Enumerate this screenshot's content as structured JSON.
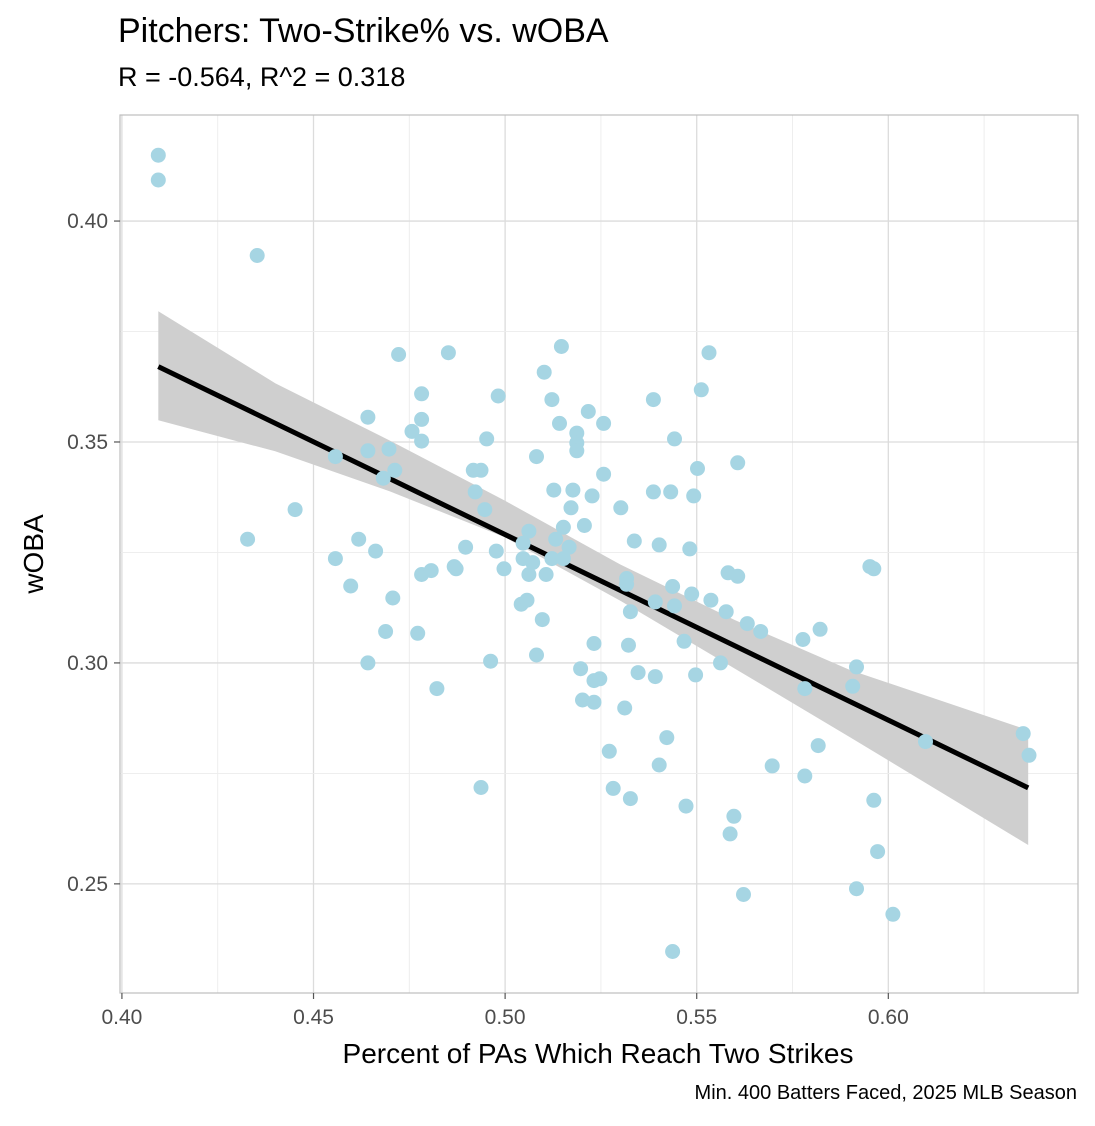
{
  "chart_data": {
    "type": "scatter",
    "title": "Pitchers: Two-Strike% vs. wOBA",
    "subtitle": "R = -0.564, R^2 = 0.318",
    "caption": "Min. 400 Batters Faced, 2025 MLB Season",
    "xlabel": "Percent of PAs Which Reach Two Strikes",
    "ylabel": "wOBA",
    "xlim": [
      0.3995,
      0.6495
    ],
    "ylim": [
      0.2253,
      0.424
    ],
    "xticks": [
      "0.40",
      "0.45",
      "0.50",
      "0.55",
      "0.60"
    ],
    "yticks": [
      "0.25",
      "0.30",
      "0.35",
      "0.40"
    ],
    "grid": true,
    "point_color": "#a6d5e3",
    "line_color": "#000000",
    "band_color": "#cfcfcf",
    "fit": {
      "intercept": 0.539,
      "slope": -0.4199,
      "x_range": [
        0.4095,
        0.6365
      ]
    },
    "confidence_band": [
      {
        "x": 0.4095,
        "lower": 0.3549,
        "upper": 0.3796
      },
      {
        "x": 0.44,
        "lower": 0.3479,
        "upper": 0.3633
      },
      {
        "x": 0.47,
        "lower": 0.3388,
        "upper": 0.3503
      },
      {
        "x": 0.5,
        "lower": 0.3284,
        "upper": 0.3367
      },
      {
        "x": 0.53,
        "lower": 0.3141,
        "upper": 0.3223
      },
      {
        "x": 0.56,
        "lower": 0.2987,
        "upper": 0.3097
      },
      {
        "x": 0.59,
        "lower": 0.2832,
        "upper": 0.2984
      },
      {
        "x": 0.6365,
        "lower": 0.2588,
        "upper": 0.2848
      }
    ],
    "points": [
      {
        "x": 0.4095,
        "y": 0.4149
      },
      {
        "x": 0.4095,
        "y": 0.4093
      },
      {
        "x": 0.4353,
        "y": 0.3922
      },
      {
        "x": 0.4328,
        "y": 0.328
      },
      {
        "x": 0.4452,
        "y": 0.3347
      },
      {
        "x": 0.4557,
        "y": 0.3467
      },
      {
        "x": 0.4557,
        "y": 0.3236
      },
      {
        "x": 0.4597,
        "y": 0.3174
      },
      {
        "x": 0.4618,
        "y": 0.328
      },
      {
        "x": 0.4642,
        "y": 0.3556
      },
      {
        "x": 0.4642,
        "y": 0.348
      },
      {
        "x": 0.4642,
        "y": 0.3
      },
      {
        "x": 0.4662,
        "y": 0.3253
      },
      {
        "x": 0.4682,
        "y": 0.3418
      },
      {
        "x": 0.4688,
        "y": 0.3071
      },
      {
        "x": 0.4697,
        "y": 0.3484
      },
      {
        "x": 0.4707,
        "y": 0.3147
      },
      {
        "x": 0.4712,
        "y": 0.3436
      },
      {
        "x": 0.4722,
        "y": 0.3698
      },
      {
        "x": 0.4757,
        "y": 0.3524
      },
      {
        "x": 0.4772,
        "y": 0.3067
      },
      {
        "x": 0.4782,
        "y": 0.3609
      },
      {
        "x": 0.4782,
        "y": 0.3551
      },
      {
        "x": 0.4782,
        "y": 0.3502
      },
      {
        "x": 0.4782,
        "y": 0.32
      },
      {
        "x": 0.4807,
        "y": 0.3209
      },
      {
        "x": 0.4822,
        "y": 0.2942
      },
      {
        "x": 0.4852,
        "y": 0.3702
      },
      {
        "x": 0.4867,
        "y": 0.3218
      },
      {
        "x": 0.4872,
        "y": 0.3213
      },
      {
        "x": 0.4897,
        "y": 0.3262
      },
      {
        "x": 0.4917,
        "y": 0.3436
      },
      {
        "x": 0.4922,
        "y": 0.3387
      },
      {
        "x": 0.4937,
        "y": 0.3436
      },
      {
        "x": 0.4937,
        "y": 0.2718
      },
      {
        "x": 0.4947,
        "y": 0.3347
      },
      {
        "x": 0.4952,
        "y": 0.3507
      },
      {
        "x": 0.4962,
        "y": 0.3004
      },
      {
        "x": 0.4977,
        "y": 0.3253
      },
      {
        "x": 0.4982,
        "y": 0.3604
      },
      {
        "x": 0.4997,
        "y": 0.3213
      },
      {
        "x": 0.5042,
        "y": 0.3133
      },
      {
        "x": 0.5047,
        "y": 0.3271
      },
      {
        "x": 0.5047,
        "y": 0.3236
      },
      {
        "x": 0.5057,
        "y": 0.3142
      },
      {
        "x": 0.5062,
        "y": 0.3298
      },
      {
        "x": 0.5062,
        "y": 0.32
      },
      {
        "x": 0.5072,
        "y": 0.3227
      },
      {
        "x": 0.5082,
        "y": 0.3467
      },
      {
        "x": 0.5082,
        "y": 0.3018
      },
      {
        "x": 0.5097,
        "y": 0.3098
      },
      {
        "x": 0.5102,
        "y": 0.3658
      },
      {
        "x": 0.5107,
        "y": 0.32
      },
      {
        "x": 0.5122,
        "y": 0.3596
      },
      {
        "x": 0.5122,
        "y": 0.3236
      },
      {
        "x": 0.5127,
        "y": 0.3391
      },
      {
        "x": 0.5132,
        "y": 0.328
      },
      {
        "x": 0.5142,
        "y": 0.3542
      },
      {
        "x": 0.5147,
        "y": 0.3716
      },
      {
        "x": 0.5152,
        "y": 0.3307
      },
      {
        "x": 0.5152,
        "y": 0.3236
      },
      {
        "x": 0.5167,
        "y": 0.3262
      },
      {
        "x": 0.5172,
        "y": 0.3351
      },
      {
        "x": 0.5177,
        "y": 0.3391
      },
      {
        "x": 0.5187,
        "y": 0.352
      },
      {
        "x": 0.5187,
        "y": 0.3498
      },
      {
        "x": 0.5187,
        "y": 0.348
      },
      {
        "x": 0.5197,
        "y": 0.2987
      },
      {
        "x": 0.5202,
        "y": 0.2916
      },
      {
        "x": 0.5207,
        "y": 0.3311
      },
      {
        "x": 0.5217,
        "y": 0.3569
      },
      {
        "x": 0.5227,
        "y": 0.3378
      },
      {
        "x": 0.5232,
        "y": 0.3044
      },
      {
        "x": 0.5232,
        "y": 0.296
      },
      {
        "x": 0.5232,
        "y": 0.2911
      },
      {
        "x": 0.5247,
        "y": 0.2964
      },
      {
        "x": 0.5257,
        "y": 0.3542
      },
      {
        "x": 0.5257,
        "y": 0.3427
      },
      {
        "x": 0.5272,
        "y": 0.28
      },
      {
        "x": 0.5282,
        "y": 0.2716
      },
      {
        "x": 0.5302,
        "y": 0.3351
      },
      {
        "x": 0.5312,
        "y": 0.2898
      },
      {
        "x": 0.5317,
        "y": 0.3191
      },
      {
        "x": 0.5317,
        "y": 0.3178
      },
      {
        "x": 0.5322,
        "y": 0.304
      },
      {
        "x": 0.5327,
        "y": 0.3116
      },
      {
        "x": 0.5327,
        "y": 0.2693
      },
      {
        "x": 0.5337,
        "y": 0.3276
      },
      {
        "x": 0.5347,
        "y": 0.2978
      },
      {
        "x": 0.5387,
        "y": 0.3596
      },
      {
        "x": 0.5387,
        "y": 0.3387
      },
      {
        "x": 0.5392,
        "y": 0.3138
      },
      {
        "x": 0.5392,
        "y": 0.2969
      },
      {
        "x": 0.5402,
        "y": 0.3267
      },
      {
        "x": 0.5402,
        "y": 0.2769
      },
      {
        "x": 0.5422,
        "y": 0.2831
      },
      {
        "x": 0.5432,
        "y": 0.3387
      },
      {
        "x": 0.5437,
        "y": 0.3173
      },
      {
        "x": 0.5437,
        "y": 0.2347
      },
      {
        "x": 0.5442,
        "y": 0.3507
      },
      {
        "x": 0.5442,
        "y": 0.3129
      },
      {
        "x": 0.5467,
        "y": 0.3049
      },
      {
        "x": 0.5472,
        "y": 0.2676
      },
      {
        "x": 0.5482,
        "y": 0.3258
      },
      {
        "x": 0.5487,
        "y": 0.3156
      },
      {
        "x": 0.5492,
        "y": 0.3378
      },
      {
        "x": 0.5497,
        "y": 0.2973
      },
      {
        "x": 0.5502,
        "y": 0.344
      },
      {
        "x": 0.5512,
        "y": 0.3618
      },
      {
        "x": 0.5532,
        "y": 0.3702
      },
      {
        "x": 0.5537,
        "y": 0.3142
      },
      {
        "x": 0.5562,
        "y": 0.3
      },
      {
        "x": 0.5577,
        "y": 0.3116
      },
      {
        "x": 0.5582,
        "y": 0.3204
      },
      {
        "x": 0.5587,
        "y": 0.2613
      },
      {
        "x": 0.5597,
        "y": 0.2653
      },
      {
        "x": 0.5607,
        "y": 0.3453
      },
      {
        "x": 0.5607,
        "y": 0.3196
      },
      {
        "x": 0.5622,
        "y": 0.2476
      },
      {
        "x": 0.5632,
        "y": 0.3089
      },
      {
        "x": 0.5667,
        "y": 0.3071
      },
      {
        "x": 0.5697,
        "y": 0.2767
      },
      {
        "x": 0.5777,
        "y": 0.3053
      },
      {
        "x": 0.5782,
        "y": 0.2942
      },
      {
        "x": 0.5782,
        "y": 0.2744
      },
      {
        "x": 0.5817,
        "y": 0.2813
      },
      {
        "x": 0.5822,
        "y": 0.3076
      },
      {
        "x": 0.5907,
        "y": 0.2947
      },
      {
        "x": 0.5917,
        "y": 0.2991
      },
      {
        "x": 0.5917,
        "y": 0.2489
      },
      {
        "x": 0.5952,
        "y": 0.3218
      },
      {
        "x": 0.5962,
        "y": 0.3213
      },
      {
        "x": 0.5962,
        "y": 0.2689
      },
      {
        "x": 0.5972,
        "y": 0.2573
      },
      {
        "x": 0.6012,
        "y": 0.2431
      },
      {
        "x": 0.6097,
        "y": 0.2822
      },
      {
        "x": 0.6352,
        "y": 0.284
      },
      {
        "x": 0.6367,
        "y": 0.2791
      }
    ]
  }
}
